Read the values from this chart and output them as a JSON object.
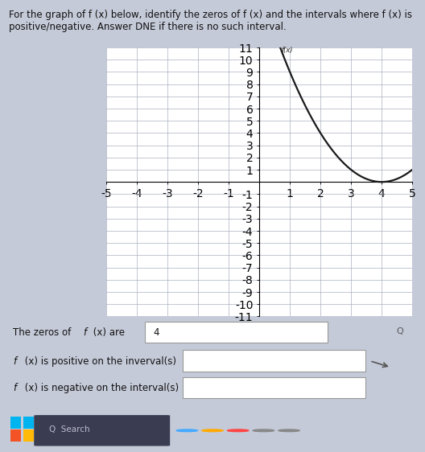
{
  "title_text": "For the graph of f (x) below, identify the zeros of f (x) and the intervals where f (x) is\npositive/negative. Answer DNE if there is no such interval.",
  "bg_color": "#c5cad8",
  "panel_color": "#e8eaf0",
  "graph_bg": "#ffffff",
  "grid_color": "#aab0c0",
  "axis_color": "#000000",
  "curve_color": "#1a1a1a",
  "label_fx": "f(x)",
  "xlim": [
    -5,
    5
  ],
  "ylim": [
    -11,
    11
  ],
  "xticks": [
    -5,
    -4,
    -3,
    -2,
    -1,
    0,
    1,
    2,
    3,
    4,
    5
  ],
  "yticks": [
    -11,
    -10,
    -9,
    -8,
    -7,
    -6,
    -5,
    -4,
    -3,
    -2,
    -1,
    0,
    1,
    2,
    3,
    4,
    5,
    6,
    7,
    8,
    9,
    10,
    11
  ],
  "zero_label": "4",
  "font_size_title": 8.5,
  "font_size_tick": 5.5,
  "font_size_bottom": 8.5,
  "taskbar_color": "#1e2230",
  "search_bar_color": "#3a3d52",
  "shadow_color": "#8a9ab5",
  "bottom_bg": "#dde0ea"
}
